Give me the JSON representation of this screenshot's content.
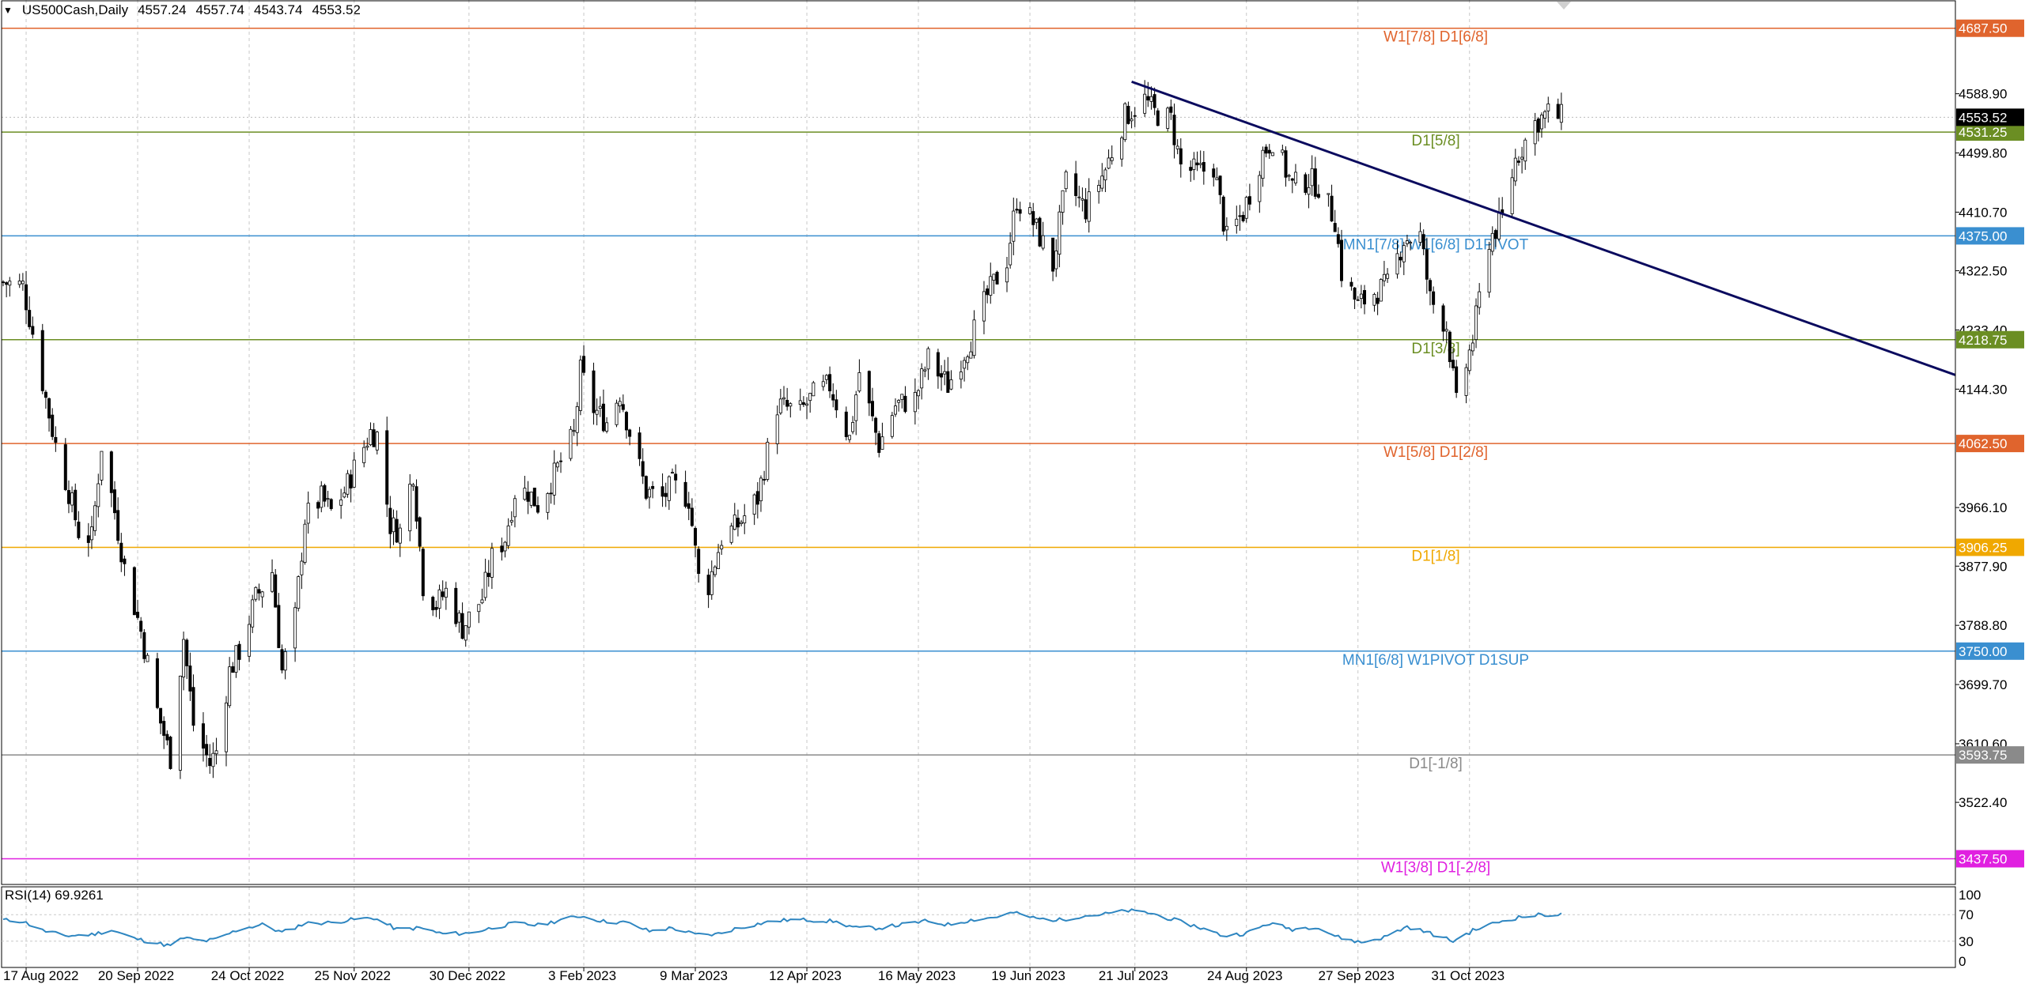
{
  "header": {
    "symbol": "US500Cash,Daily",
    "open": "4557.24",
    "high": "4557.74",
    "low": "4543.74",
    "close": "4553.52"
  },
  "colors": {
    "candle_line": "#000000",
    "trendline": "#0a0a5e",
    "rsi_line": "#2e86c1",
    "grid": "#c8c8c8"
  },
  "chart_data": [
    {
      "type": "candlestick",
      "ylim": [
        3400,
        4730
      ],
      "x_date_range": [
        "2022-08-10",
        "2023-11-29"
      ],
      "x_ticks": [
        {
          "date": "2022-08-17",
          "label": "17 Aug 2022"
        },
        {
          "date": "2022-09-20",
          "label": "20 Sep 2022"
        },
        {
          "date": "2022-10-24",
          "label": "24 Oct 2022"
        },
        {
          "date": "2022-11-25",
          "label": "25 Nov 2022"
        },
        {
          "date": "2022-12-30",
          "label": "30 Dec 2022"
        },
        {
          "date": "2023-02-03",
          "label": "3 Feb 2023"
        },
        {
          "date": "2023-03-09",
          "label": "9 Mar 2023"
        },
        {
          "date": "2023-04-12",
          "label": "12 Apr 2023"
        },
        {
          "date": "2023-05-16",
          "label": "16 May 2023"
        },
        {
          "date": "2023-06-19",
          "label": "19 Jun 2023"
        },
        {
          "date": "2023-07-21",
          "label": "21 Jul 2023"
        },
        {
          "date": "2023-08-24",
          "label": "24 Aug 2023"
        },
        {
          "date": "2023-09-27",
          "label": "27 Sep 2023"
        },
        {
          "date": "2023-10-31",
          "label": "31 Oct 2023"
        }
      ],
      "price_ticks": [
        "4588.90",
        "4499.80",
        "4410.70",
        "4322.50",
        "4233.40",
        "4144.30",
        "3966.10",
        "3877.90",
        "3788.80",
        "3699.70",
        "3610.60",
        "3522.40"
      ],
      "levels": [
        {
          "price": 4687.5,
          "value": "4687.50",
          "label": "W1[7/8] D1[6/8]",
          "color": "#e0642d"
        },
        {
          "price": 4531.25,
          "value": "4531.25",
          "label": "D1[5/8]",
          "color": "#6b8e23"
        },
        {
          "price": 4375.0,
          "value": "4375.00",
          "label": "MN1[7/8] W1[6/8] D1PIVOT",
          "color": "#3a8fd0"
        },
        {
          "price": 4218.75,
          "value": "4218.75",
          "label": "D1[3/8]",
          "color": "#6b8e23"
        },
        {
          "price": 4062.5,
          "value": "4062.50",
          "label": "W1[5/8] D1[2/8]",
          "color": "#e0642d"
        },
        {
          "price": 3906.25,
          "value": "3906.25",
          "label": "D1[1/8]",
          "color": "#f0a800"
        },
        {
          "price": 3750.0,
          "value": "3750.00",
          "label": "MN1[6/8] W1PIVOT D1SUP",
          "color": "#3a8fd0"
        },
        {
          "price": 3593.75,
          "value": "3593.75",
          "label": "D1[-1/8]",
          "color": "#8a8a8a"
        },
        {
          "price": 3437.5,
          "value": "3437.50",
          "label": "W1[3/8] D1[-2/8]",
          "color": "#e020e0"
        }
      ],
      "current_price": {
        "price": 4553.52,
        "value": "4553.52"
      },
      "trendline": {
        "start": [
          "2023-07-20",
          4607
        ],
        "end": [
          "2023-11-25",
          4382
        ]
      },
      "price_path": [
        [
          "2022-08-10",
          4305
        ],
        [
          "2022-08-16",
          4300
        ],
        [
          "2022-08-19",
          4230
        ],
        [
          "2022-08-23",
          4130
        ],
        [
          "2022-08-26",
          4060
        ],
        [
          "2022-08-30",
          3990
        ],
        [
          "2022-09-02",
          3930
        ],
        [
          "2022-09-06",
          3920
        ],
        [
          "2022-09-09",
          4060
        ],
        [
          "2022-09-13",
          3960
        ],
        [
          "2022-09-16",
          3875
        ],
        [
          "2022-09-21",
          3780
        ],
        [
          "2022-09-26",
          3660
        ],
        [
          "2022-09-30",
          3590
        ],
        [
          "2022-10-04",
          3770
        ],
        [
          "2022-10-07",
          3640
        ],
        [
          "2022-10-12",
          3580
        ],
        [
          "2022-10-14",
          3600
        ],
        [
          "2022-10-18",
          3720
        ],
        [
          "2022-10-21",
          3750
        ],
        [
          "2022-10-26",
          3830
        ],
        [
          "2022-10-31",
          3870
        ],
        [
          "2022-11-03",
          3720
        ],
        [
          "2022-11-07",
          3800
        ],
        [
          "2022-11-10",
          3950
        ],
        [
          "2022-11-15",
          3980
        ],
        [
          "2022-11-18",
          3960
        ],
        [
          "2022-11-22",
          3990
        ],
        [
          "2022-11-25",
          4025
        ],
        [
          "2022-11-30",
          4080
        ],
        [
          "2022-12-02",
          4075
        ],
        [
          "2022-12-06",
          3940
        ],
        [
          "2022-12-09",
          3930
        ],
        [
          "2022-12-13",
          4020
        ],
        [
          "2022-12-16",
          3850
        ],
        [
          "2022-12-20",
          3820
        ],
        [
          "2022-12-23",
          3840
        ],
        [
          "2022-12-28",
          3785
        ],
        [
          "2023-01-03",
          3830
        ],
        [
          "2023-01-06",
          3890
        ],
        [
          "2023-01-10",
          3920
        ],
        [
          "2023-01-13",
          3990
        ],
        [
          "2023-01-17",
          3990
        ],
        [
          "2023-01-20",
          3970
        ],
        [
          "2023-01-25",
          4015
        ],
        [
          "2023-01-31",
          4075
        ],
        [
          "2023-02-02",
          4170
        ],
        [
          "2023-02-06",
          4115
        ],
        [
          "2023-02-10",
          4095
        ],
        [
          "2023-02-14",
          4140
        ],
        [
          "2023-02-17",
          4080
        ],
        [
          "2023-02-22",
          3990
        ],
        [
          "2023-02-27",
          3980
        ],
        [
          "2023-03-02",
          4000
        ],
        [
          "2023-03-07",
          3980
        ],
        [
          "2023-03-10",
          3860
        ],
        [
          "2023-03-13",
          3850
        ],
        [
          "2023-03-17",
          3920
        ],
        [
          "2023-03-22",
          3940
        ],
        [
          "2023-03-28",
          3980
        ],
        [
          "2023-04-03",
          4120
        ],
        [
          "2023-04-10",
          4110
        ],
        [
          "2023-04-14",
          4135
        ],
        [
          "2023-04-19",
          4150
        ],
        [
          "2023-04-25",
          4070
        ],
        [
          "2023-04-28",
          4170
        ],
        [
          "2023-05-04",
          4060
        ],
        [
          "2023-05-09",
          4120
        ],
        [
          "2023-05-15",
          4130
        ],
        [
          "2023-05-19",
          4190
        ],
        [
          "2023-05-25",
          4150
        ],
        [
          "2023-06-01",
          4220
        ],
        [
          "2023-06-06",
          4285
        ],
        [
          "2023-06-12",
          4340
        ],
        [
          "2023-06-15",
          4430
        ],
        [
          "2023-06-20",
          4395
        ],
        [
          "2023-06-26",
          4330
        ],
        [
          "2023-06-30",
          4455
        ],
        [
          "2023-07-06",
          4415
        ],
        [
          "2023-07-12",
          4475
        ],
        [
          "2023-07-18",
          4555
        ],
        [
          "2023-07-24",
          4580
        ],
        [
          "2023-07-27",
          4560
        ],
        [
          "2023-08-01",
          4550
        ],
        [
          "2023-08-04",
          4480
        ],
        [
          "2023-08-09",
          4470
        ],
        [
          "2023-08-14",
          4480
        ],
        [
          "2023-08-18",
          4370
        ],
        [
          "2023-08-23",
          4410
        ],
        [
          "2023-08-29",
          4500
        ],
        [
          "2023-09-01",
          4520
        ],
        [
          "2023-09-07",
          4450
        ],
        [
          "2023-09-12",
          4460
        ],
        [
          "2023-09-15",
          4450
        ],
        [
          "2023-09-20",
          4400
        ],
        [
          "2023-09-22",
          4320
        ],
        [
          "2023-09-27",
          4270
        ],
        [
          "2023-10-02",
          4290
        ],
        [
          "2023-10-06",
          4300
        ],
        [
          "2023-10-11",
          4370
        ],
        [
          "2023-10-16",
          4375
        ],
        [
          "2023-10-19",
          4280
        ],
        [
          "2023-10-24",
          4240
        ],
        [
          "2023-10-27",
          4120
        ],
        [
          "2023-11-01",
          4220
        ],
        [
          "2023-11-06",
          4370
        ],
        [
          "2023-11-10",
          4400
        ],
        [
          "2023-11-14",
          4490
        ],
        [
          "2023-11-20",
          4545
        ],
        [
          "2023-11-24",
          4560
        ],
        [
          "2023-11-28",
          4553
        ]
      ]
    },
    {
      "type": "line",
      "title": "RSI(14) 69.9261",
      "ylim": [
        0,
        100
      ],
      "y_ticks": [
        100,
        70,
        30,
        0
      ],
      "series": [
        {
          "values": [
            [
              "2022-08-10",
              62
            ],
            [
              "2022-08-16",
              60
            ],
            [
              "2022-08-22",
              46
            ],
            [
              "2022-08-29",
              38
            ],
            [
              "2022-09-06",
              40
            ],
            [
              "2022-09-12",
              47
            ],
            [
              "2022-09-19",
              34
            ],
            [
              "2022-09-26",
              27
            ],
            [
              "2022-09-30",
              23
            ],
            [
              "2022-10-04",
              35
            ],
            [
              "2022-10-10",
              30
            ],
            [
              "2022-10-14",
              33
            ],
            [
              "2022-10-21",
              48
            ],
            [
              "2022-10-28",
              55
            ],
            [
              "2022-11-03",
              43
            ],
            [
              "2022-11-10",
              57
            ],
            [
              "2022-11-18",
              58
            ],
            [
              "2022-11-25",
              63
            ],
            [
              "2022-12-01",
              65
            ],
            [
              "2022-12-08",
              48
            ],
            [
              "2022-12-15",
              50
            ],
            [
              "2022-12-22",
              41
            ],
            [
              "2022-12-30",
              42
            ],
            [
              "2023-01-06",
              50
            ],
            [
              "2023-01-13",
              57
            ],
            [
              "2023-01-20",
              54
            ],
            [
              "2023-01-27",
              62
            ],
            [
              "2023-02-02",
              68
            ],
            [
              "2023-02-09",
              60
            ],
            [
              "2023-02-16",
              58
            ],
            [
              "2023-02-23",
              45
            ],
            [
              "2023-03-02",
              50
            ],
            [
              "2023-03-09",
              40
            ],
            [
              "2023-03-15",
              40
            ],
            [
              "2023-03-22",
              50
            ],
            [
              "2023-03-30",
              58
            ],
            [
              "2023-04-06",
              62
            ],
            [
              "2023-04-13",
              62
            ],
            [
              "2023-04-20",
              60
            ],
            [
              "2023-04-27",
              50
            ],
            [
              "2023-05-04",
              50
            ],
            [
              "2023-05-11",
              55
            ],
            [
              "2023-05-18",
              60
            ],
            [
              "2023-05-25",
              55
            ],
            [
              "2023-06-01",
              62
            ],
            [
              "2023-06-08",
              66
            ],
            [
              "2023-06-14",
              73
            ],
            [
              "2023-06-21",
              64
            ],
            [
              "2023-06-28",
              62
            ],
            [
              "2023-07-05",
              68
            ],
            [
              "2023-07-12",
              71
            ],
            [
              "2023-07-19",
              76
            ],
            [
              "2023-07-26",
              72
            ],
            [
              "2023-08-02",
              62
            ],
            [
              "2023-08-09",
              52
            ],
            [
              "2023-08-17",
              38
            ],
            [
              "2023-08-24",
              42
            ],
            [
              "2023-08-31",
              57
            ],
            [
              "2023-09-07",
              48
            ],
            [
              "2023-09-14",
              52
            ],
            [
              "2023-09-21",
              36
            ],
            [
              "2023-09-28",
              28
            ],
            [
              "2023-10-05",
              36
            ],
            [
              "2023-10-12",
              52
            ],
            [
              "2023-10-19",
              42
            ],
            [
              "2023-10-26",
              30
            ],
            [
              "2023-11-01",
              46
            ],
            [
              "2023-11-08",
              58
            ],
            [
              "2023-11-15",
              66
            ],
            [
              "2023-11-22",
              70
            ],
            [
              "2023-11-28",
              70
            ]
          ]
        }
      ]
    }
  ]
}
